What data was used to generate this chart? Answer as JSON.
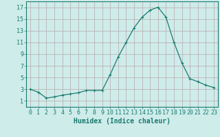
{
  "x": [
    0,
    1,
    2,
    3,
    4,
    5,
    6,
    7,
    8,
    9,
    10,
    11,
    12,
    13,
    14,
    15,
    16,
    17,
    18,
    19,
    20,
    21,
    22,
    23
  ],
  "y": [
    3.0,
    2.5,
    1.5,
    1.7,
    2.0,
    2.2,
    2.4,
    2.8,
    2.8,
    2.8,
    5.5,
    8.5,
    11.0,
    13.5,
    15.3,
    16.5,
    17.0,
    15.3,
    11.0,
    7.5,
    4.8,
    4.3,
    3.7,
    3.3
  ],
  "line_color": "#1a7a6e",
  "marker": "+",
  "marker_size": 3,
  "marker_lw": 0.8,
  "bg_color": "#ceecea",
  "grid_color": "#b8a8a8",
  "xlabel": "Humidex (Indice chaleur)",
  "xlim": [
    -0.5,
    23.5
  ],
  "ylim": [
    0,
    18
  ],
  "yticks": [
    1,
    3,
    5,
    7,
    9,
    11,
    13,
    15,
    17
  ],
  "xtick_labels": [
    "0",
    "1",
    "2",
    "3",
    "4",
    "5",
    "6",
    "7",
    "8",
    "9",
    "10",
    "11",
    "12",
    "13",
    "14",
    "15",
    "16",
    "17",
    "18",
    "19",
    "20",
    "21",
    "22",
    "23"
  ],
  "tick_color": "#1a7a6e",
  "tick_fontsize": 6,
  "xlabel_fontsize": 7,
  "axis_color": "#1a7a6e",
  "line_width": 0.9
}
